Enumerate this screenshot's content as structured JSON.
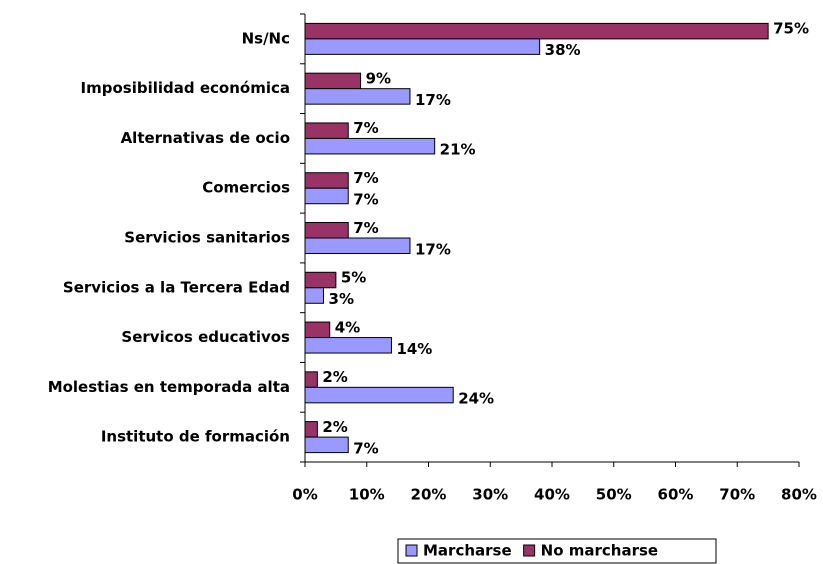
{
  "chart_data": {
    "type": "hbar",
    "categories": [
      "Ns/Nc",
      "Imposibilidad económica",
      "Alternativas de ocio",
      "Comercios",
      "Servicios sanitarios",
      "Servicios a la Tercera Edad",
      "Servicos educativos",
      "Molestias en temporada alta",
      "Instituto de formación"
    ],
    "series": [
      {
        "name": "Marcharse",
        "color": "#9999ff",
        "values": [
          38,
          17,
          21,
          7,
          17,
          3,
          14,
          24,
          7
        ],
        "value_labels": [
          "38%",
          "17%",
          "21%",
          "7%",
          "17%",
          "3%",
          "14%",
          "24%",
          "7%"
        ]
      },
      {
        "name": "No marcharse",
        "color": "#993366",
        "values": [
          75,
          9,
          7,
          7,
          7,
          5,
          4,
          2,
          2
        ],
        "value_labels": [
          "75%",
          "9%",
          "7%",
          "7%",
          "7%",
          "5%",
          "4%",
          "2%",
          "2%"
        ]
      }
    ],
    "xlim": [
      0,
      80
    ],
    "xticks": [
      {
        "value": 0,
        "label": "0%"
      },
      {
        "value": 10,
        "label": "10%"
      },
      {
        "value": 20,
        "label": "20%"
      },
      {
        "value": 30,
        "label": "30%"
      },
      {
        "value": 40,
        "label": "40%"
      },
      {
        "value": 50,
        "label": "50%"
      },
      {
        "value": 60,
        "label": "60%"
      },
      {
        "value": 70,
        "label": "70%"
      },
      {
        "value": 80,
        "label": "80%"
      }
    ],
    "legend": "bottom"
  }
}
